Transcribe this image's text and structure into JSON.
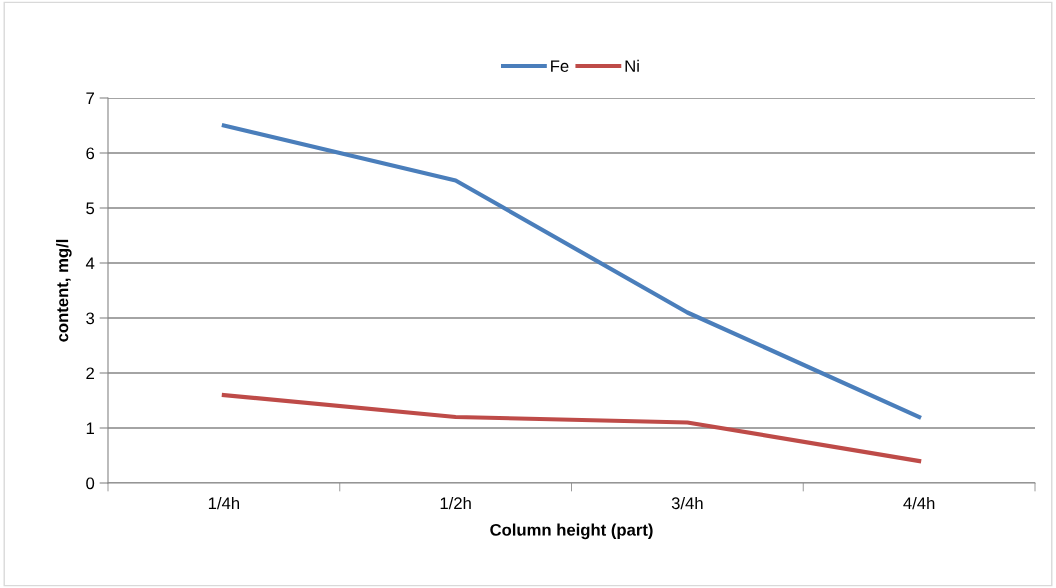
{
  "chart_data": {
    "type": "line",
    "xlabel": "Column height (part)",
    "ylabel": "content, mg/l",
    "categories": [
      "1/4h",
      "1/2h",
      "3/4h",
      "4/4h"
    ],
    "series": [
      {
        "name": "Fe",
        "color": "#4a7ebb",
        "values": [
          6.5,
          5.5,
          3.1,
          1.2
        ]
      },
      {
        "name": "Ni",
        "color": "#be4b48",
        "values": [
          1.6,
          1.2,
          1.1,
          0.4
        ]
      }
    ],
    "ylim": [
      0,
      7
    ],
    "yticks": [
      0,
      1,
      2,
      3,
      4,
      5,
      6,
      7
    ],
    "grid": "y",
    "legend": "top",
    "marker": "none",
    "line_style": "solid"
  }
}
